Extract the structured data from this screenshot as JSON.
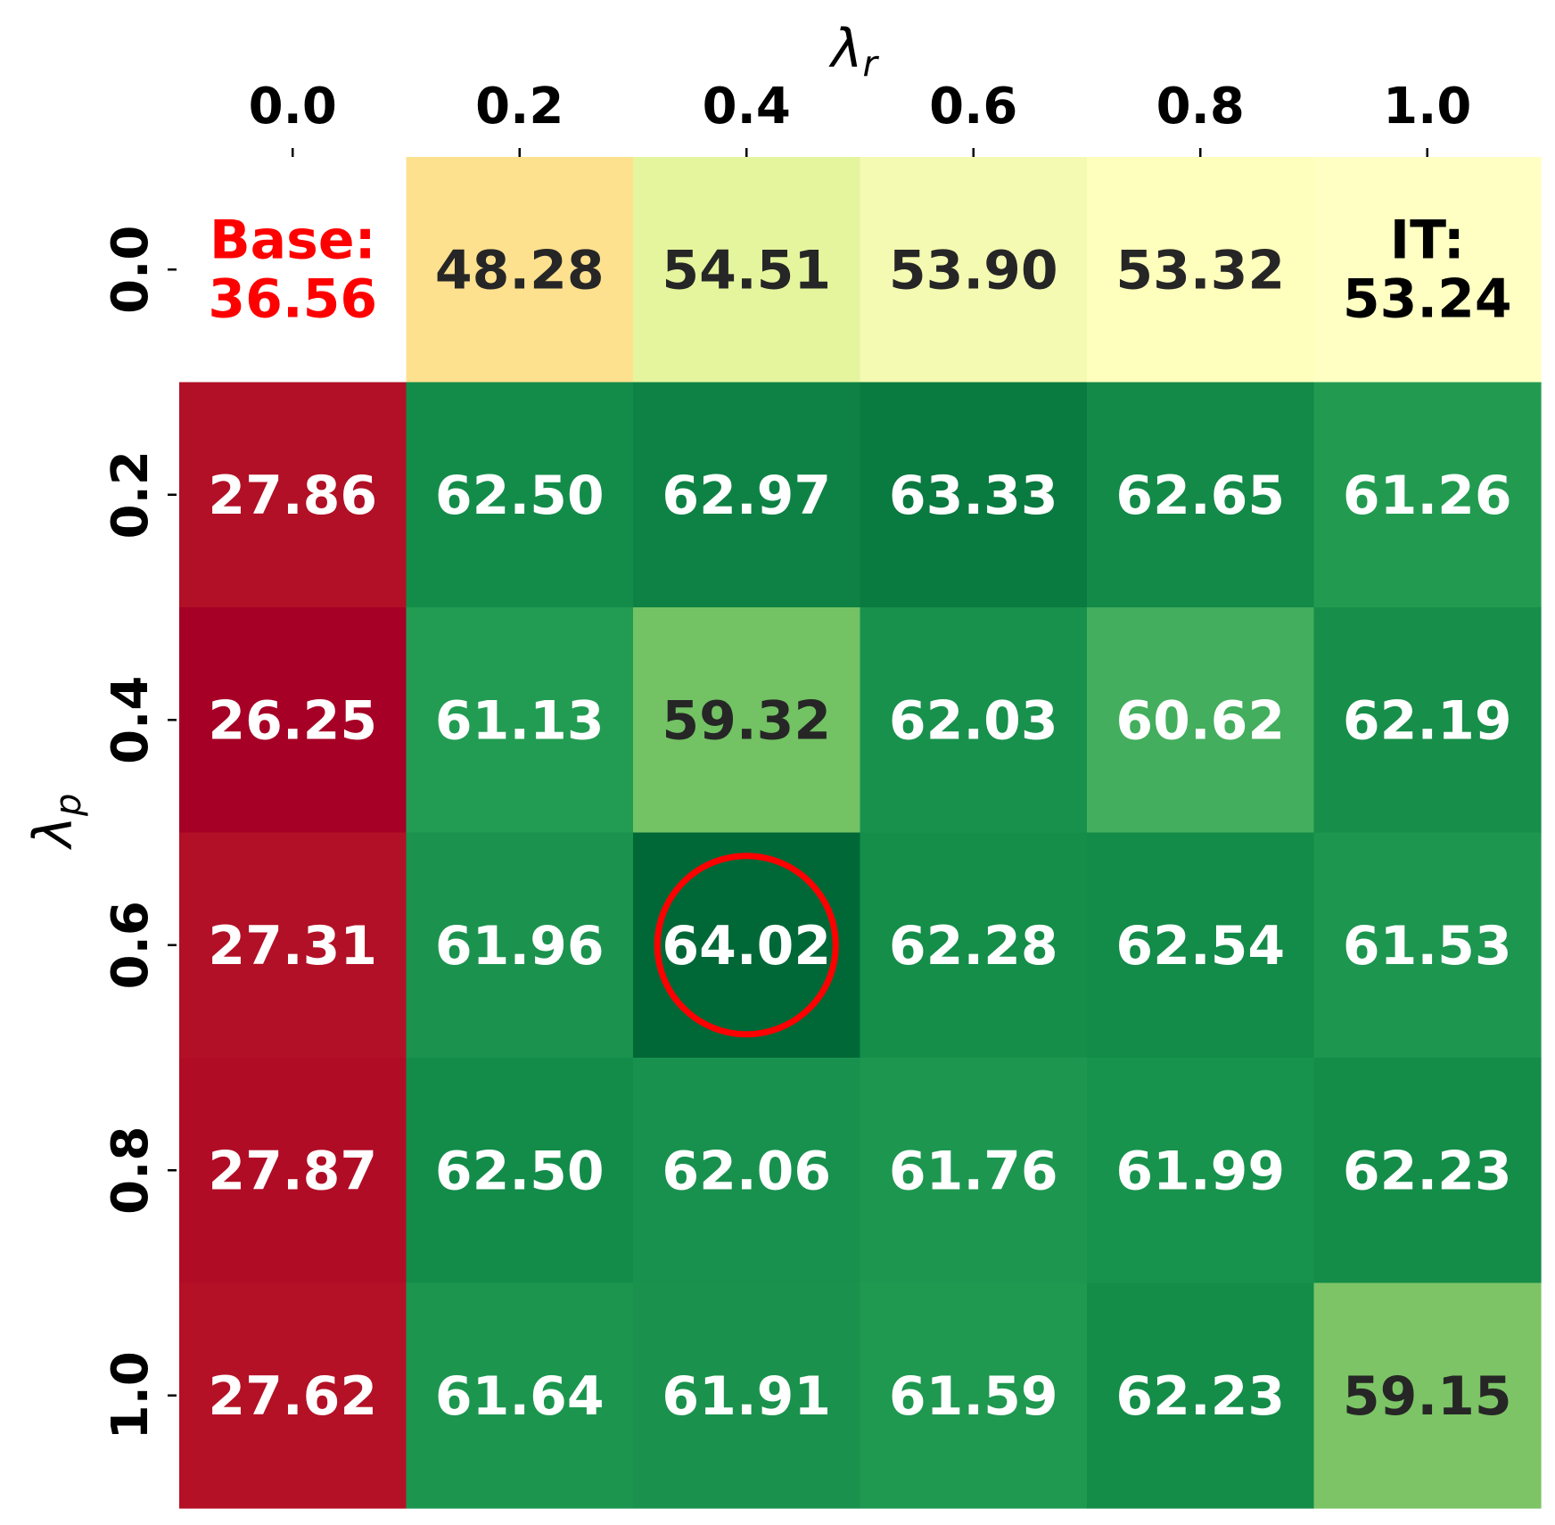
{
  "chart_data": {
    "type": "heatmap",
    "title": "",
    "xlabel": {
      "symbol": "λ",
      "sub": "r"
    },
    "ylabel": {
      "symbol": "λ",
      "sub": "p"
    },
    "x_ticks": [
      "0.0",
      "0.2",
      "0.4",
      "0.6",
      "0.8",
      "1.0"
    ],
    "y_ticks": [
      "0.0",
      "0.2",
      "0.4",
      "0.6",
      "0.8",
      "1.0"
    ],
    "x_axis_position": "top",
    "colormap": "RdYlGn",
    "color_range": [
      26.25,
      64.02
    ],
    "values": [
      [
        36.56,
        48.28,
        54.51,
        53.9,
        53.32,
        53.24
      ],
      [
        27.86,
        62.5,
        62.97,
        63.33,
        62.65,
        61.26
      ],
      [
        26.25,
        61.13,
        59.32,
        62.03,
        60.62,
        62.19
      ],
      [
        27.31,
        61.96,
        64.02,
        62.28,
        62.54,
        61.53
      ],
      [
        27.87,
        62.5,
        62.06,
        61.76,
        61.99,
        62.23
      ],
      [
        27.62,
        61.64,
        61.91,
        61.59,
        62.23,
        59.15
      ]
    ],
    "special_cells": [
      {
        "row": 0,
        "col": 0,
        "label": "Base:",
        "value": "36.56",
        "text_color": "#ff0000",
        "background": "#ffffff"
      },
      {
        "row": 0,
        "col": 5,
        "label": "IT:",
        "value": "53.24",
        "text_color": "#000000",
        "background": "#ffffc4"
      }
    ],
    "highlight": {
      "row": 3,
      "col": 2,
      "shape": "circle",
      "color": "#ff0000"
    },
    "cell_colors": [
      [
        "#ffffff",
        "#fde18f",
        "#e5f59e",
        "#f4fab1",
        "#fefebd",
        "#ffffc4"
      ],
      [
        "#b11026",
        "#138c4a",
        "#0e8245",
        "#097a40",
        "#138a48",
        "#229b51"
      ],
      [
        "#a60026",
        "#229c52",
        "#73c264",
        "#18914d",
        "#43ae5d",
        "#178e49"
      ],
      [
        "#b21026",
        "#1b934e",
        "#006837",
        "#148e49",
        "#138b49",
        "#1d9650"
      ],
      [
        "#b10c26",
        "#138c4a",
        "#19914e",
        "#1d9750",
        "#18934d",
        "#148d49"
      ],
      [
        "#b41126",
        "#1c964f",
        "#1a924d",
        "#1f9850",
        "#148d49",
        "#7cc466"
      ]
    ],
    "text_colors": [
      [
        "#ff0000",
        "#262626",
        "#262626",
        "#262626",
        "#262626",
        "#000000"
      ],
      [
        "#ffffff",
        "#ffffff",
        "#ffffff",
        "#ffffff",
        "#ffffff",
        "#ffffff"
      ],
      [
        "#ffffff",
        "#ffffff",
        "#262626",
        "#ffffff",
        "#ffffff",
        "#ffffff"
      ],
      [
        "#ffffff",
        "#ffffff",
        "#ffffff",
        "#ffffff",
        "#ffffff",
        "#ffffff"
      ],
      [
        "#ffffff",
        "#ffffff",
        "#ffffff",
        "#ffffff",
        "#ffffff",
        "#ffffff"
      ],
      [
        "#ffffff",
        "#ffffff",
        "#ffffff",
        "#ffffff",
        "#ffffff",
        "#262626"
      ]
    ]
  }
}
